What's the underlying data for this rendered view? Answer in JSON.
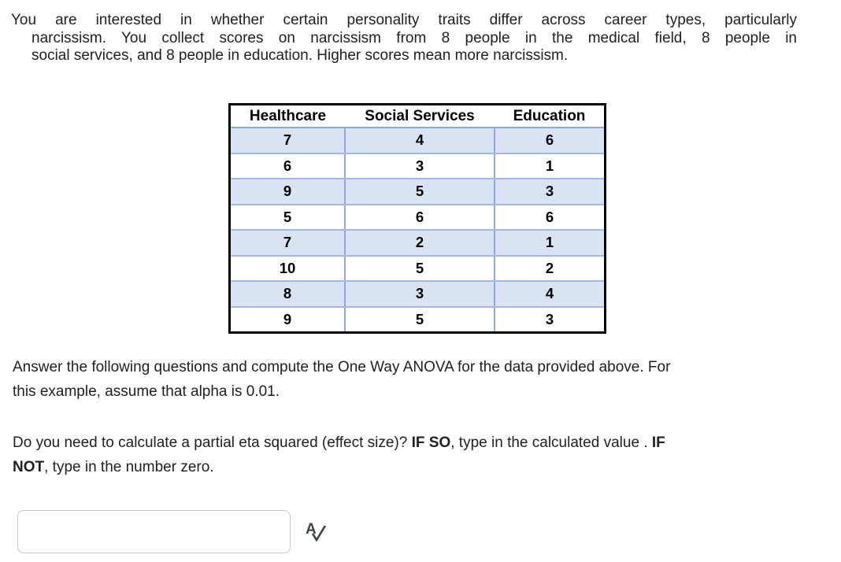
{
  "intro_lines": [
    "You are interested in whether certain personality traits differ across career types, particularly",
    "narcissism. You collect scores on narcissism from 8 people in the medical field, 8 people in",
    "social services, and 8 people in education. Higher scores mean more narcissism."
  ],
  "table": {
    "headers": [
      "Healthcare",
      "Social Services",
      "Education"
    ],
    "rows": [
      [
        "7",
        "4",
        "6"
      ],
      [
        "6",
        "3",
        "1"
      ],
      [
        "9",
        "5",
        "3"
      ],
      [
        "5",
        "6",
        "6"
      ],
      [
        "7",
        "2",
        "1"
      ],
      [
        "10",
        "5",
        "2"
      ],
      [
        "8",
        "3",
        "4"
      ],
      [
        "9",
        "5",
        "3"
      ]
    ]
  },
  "instructions_lines": [
    "Answer the following questions and compute the One Way ANOVA for the data provided above. For",
    "this example, assume that alpha is 0.01."
  ],
  "prompt_lines": [
    {
      "segments": [
        {
          "text": "Do you need to calculate a partial eta squared (effect size)? ",
          "bold": false
        },
        {
          "text": "IF SO",
          "bold": true
        },
        {
          "text": ", type in the calculated value . ",
          "bold": false
        },
        {
          "text": "IF",
          "bold": true
        }
      ]
    },
    {
      "segments": [
        {
          "text": "NOT",
          "bold": true
        },
        {
          "text": ", type in the number zero.",
          "bold": false
        }
      ]
    }
  ],
  "answer_input": {
    "value": "",
    "placeholder": ""
  },
  "icons": {
    "spellcheck": "letter-a-with-checkmark"
  },
  "colors": {
    "text": "#212121",
    "row_shade": "#DAE3F3",
    "table_grid": "#8FAADC",
    "table_row_line": "#A3B8DF",
    "table_outer_border": "#000000",
    "input_border": "#C3C8CD",
    "icon": "#3D4349"
  }
}
